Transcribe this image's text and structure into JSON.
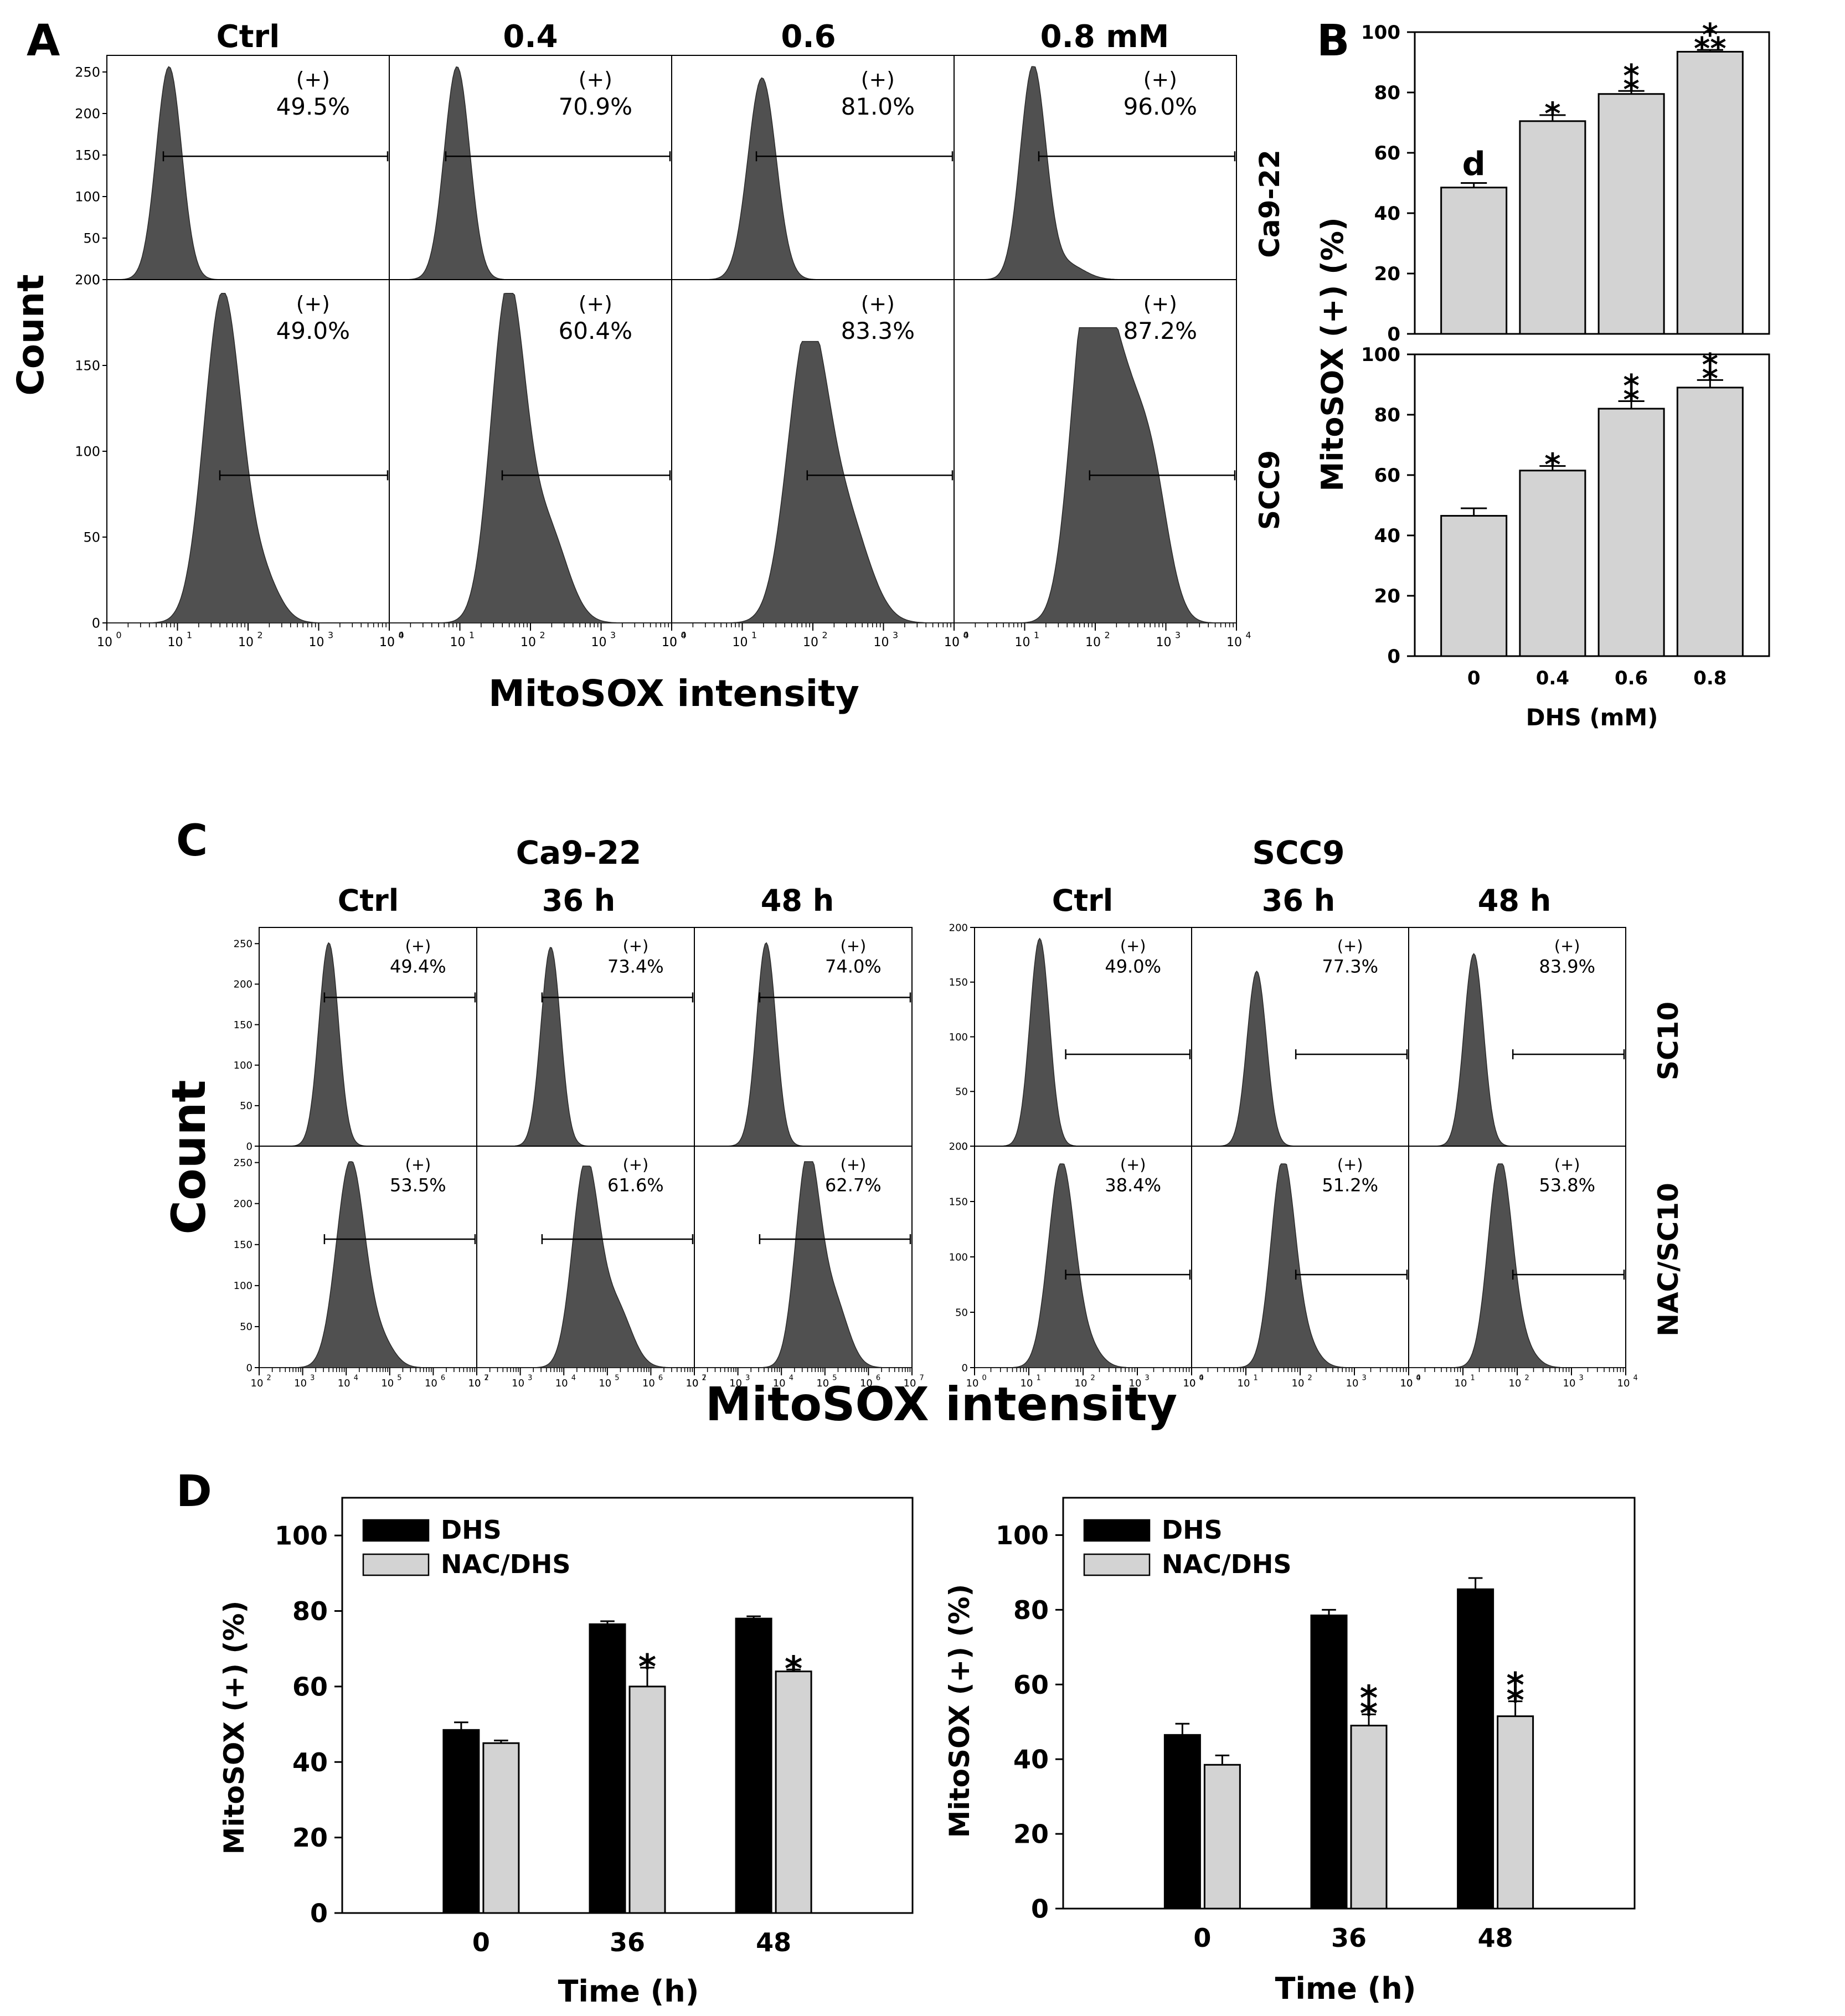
{
  "panel_letters": {
    "a": "A",
    "b": "B",
    "c": "C",
    "d": "D"
  },
  "colors": {
    "hist_fill": "#505050",
    "bar_light": "#d3d3d3",
    "bar_dark": "#000000",
    "axis": "#000000"
  },
  "panel_a": {
    "column_titles": [
      "Ctrl",
      "0.4",
      "0.6",
      "0.8 mM"
    ],
    "count_label": "Count",
    "x_title": "MitoSOX intensity",
    "x_tick_exponents": [
      "0",
      "1",
      "2",
      "3",
      "4"
    ],
    "gate_label": "(+)",
    "rows": [
      {
        "y_ticks": [
          0,
          50,
          100,
          150,
          200,
          250
        ],
        "y_max": 270,
        "values": [
          "49.5%",
          "70.9%",
          "81.0%",
          "96.0%"
        ]
      },
      {
        "y_ticks": [
          0,
          50,
          100,
          150,
          200
        ],
        "y_max": 200,
        "values": [
          "49.0%",
          "60.4%",
          "83.3%",
          "87.2%"
        ]
      }
    ]
  },
  "panel_c": {
    "groups": [
      {
        "name": "Ca9-22",
        "column_titles": [
          "Ctrl",
          "36 h",
          "48 h"
        ],
        "x_tick_exponents": [
          "2",
          "3",
          "4",
          "5",
          "6",
          "7"
        ],
        "rows": [
          {
            "y_ticks": [
              0,
              50,
              100,
              150,
              200,
              250
            ],
            "values": [
              "49.4%",
              "73.4%",
              "74.0%"
            ]
          },
          {
            "y_ticks": [
              0,
              50,
              100,
              150,
              200,
              250
            ],
            "values": [
              "53.5%",
              "61.6%",
              "62.7%"
            ]
          }
        ]
      },
      {
        "name": "SCC9",
        "column_titles": [
          "Ctrl",
          "36 h",
          "48 h"
        ],
        "x_tick_exponents": [
          "0",
          "1",
          "2",
          "3",
          "4"
        ],
        "rows": [
          {
            "y_ticks": [
              0,
              50,
              100,
              150,
              200
            ],
            "values": [
              "49.0%",
              "77.3%",
              "83.9%"
            ]
          },
          {
            "y_ticks": [
              0,
              50,
              100,
              150,
              200
            ],
            "values": [
              "38.4%",
              "51.2%",
              "53.8%"
            ]
          }
        ]
      }
    ],
    "row_labels": [
      "SC10",
      "NAC/SC10"
    ],
    "count_label": "Count",
    "x_title": "MitoSOX intensity",
    "gate_label": "(+)"
  },
  "chart_data": [
    {
      "id": "B-Ca9-22",
      "type": "bar",
      "row_label": "Ca9-22",
      "categories": [
        "0",
        "0.4",
        "0.6",
        "0.8"
      ],
      "values": [
        48.5,
        70.5,
        79.5,
        93.5
      ],
      "errors": [
        1.5,
        2.0,
        1.0,
        0.6
      ],
      "annotations": [
        "d",
        "*",
        "**",
        "***"
      ],
      "ylim": [
        0,
        100
      ],
      "yticks": [
        0,
        20,
        40,
        60,
        80,
        100
      ]
    },
    {
      "id": "B-SCC9",
      "type": "bar",
      "row_label": "SCC9",
      "categories": [
        "0",
        "0.4",
        "0.6",
        "0.8"
      ],
      "values": [
        46.5,
        61.5,
        82.0,
        89.0
      ],
      "errors": [
        2.5,
        1.5,
        2.5,
        2.5
      ],
      "annotations": [
        "",
        "*",
        "**",
        "**"
      ],
      "ylim": [
        0,
        100
      ],
      "yticks": [
        0,
        20,
        40,
        60,
        80,
        100
      ],
      "xlabel": "DHS (mM)"
    },
    {
      "id": "D-left",
      "type": "bar",
      "categories": [
        "0",
        "36",
        "48"
      ],
      "series": [
        {
          "name": "DHS",
          "values": [
            48.5,
            76.5,
            78.0
          ],
          "errors": [
            2.0,
            0.8,
            0.6
          ]
        },
        {
          "name": "NAC/DHS",
          "values": [
            45.0,
            60.0,
            64.0
          ],
          "errors": [
            0.7,
            5.0,
            0.5
          ]
        }
      ],
      "annotations": [
        [
          "",
          ""
        ],
        [
          "",
          "*"
        ],
        [
          "",
          "*"
        ]
      ],
      "xlabel": "Time (h)",
      "ylabel": "MitoSOX (+) (%)",
      "ylim": [
        0,
        110
      ],
      "yticks": [
        0,
        20,
        40,
        60,
        80,
        100
      ],
      "legend": "top-left"
    },
    {
      "id": "D-right",
      "type": "bar",
      "categories": [
        "0",
        "36",
        "48"
      ],
      "series": [
        {
          "name": "DHS",
          "values": [
            46.5,
            78.5,
            85.5
          ],
          "errors": [
            3.0,
            1.5,
            3.0
          ]
        },
        {
          "name": "NAC/DHS",
          "values": [
            38.5,
            49.0,
            51.5
          ],
          "errors": [
            2.5,
            3.0,
            4.0
          ]
        }
      ],
      "annotations": [
        [
          "",
          ""
        ],
        [
          "",
          "**"
        ],
        [
          "",
          "**"
        ]
      ],
      "xlabel": "Time (h)",
      "ylabel": "MitoSOX (+) (%)",
      "ylim": [
        0,
        110
      ],
      "yticks": [
        0,
        20,
        40,
        60,
        80,
        100
      ],
      "legend": "top-left"
    }
  ],
  "panel_b": {
    "ylabel": "MitoSOX (+) (%)"
  }
}
